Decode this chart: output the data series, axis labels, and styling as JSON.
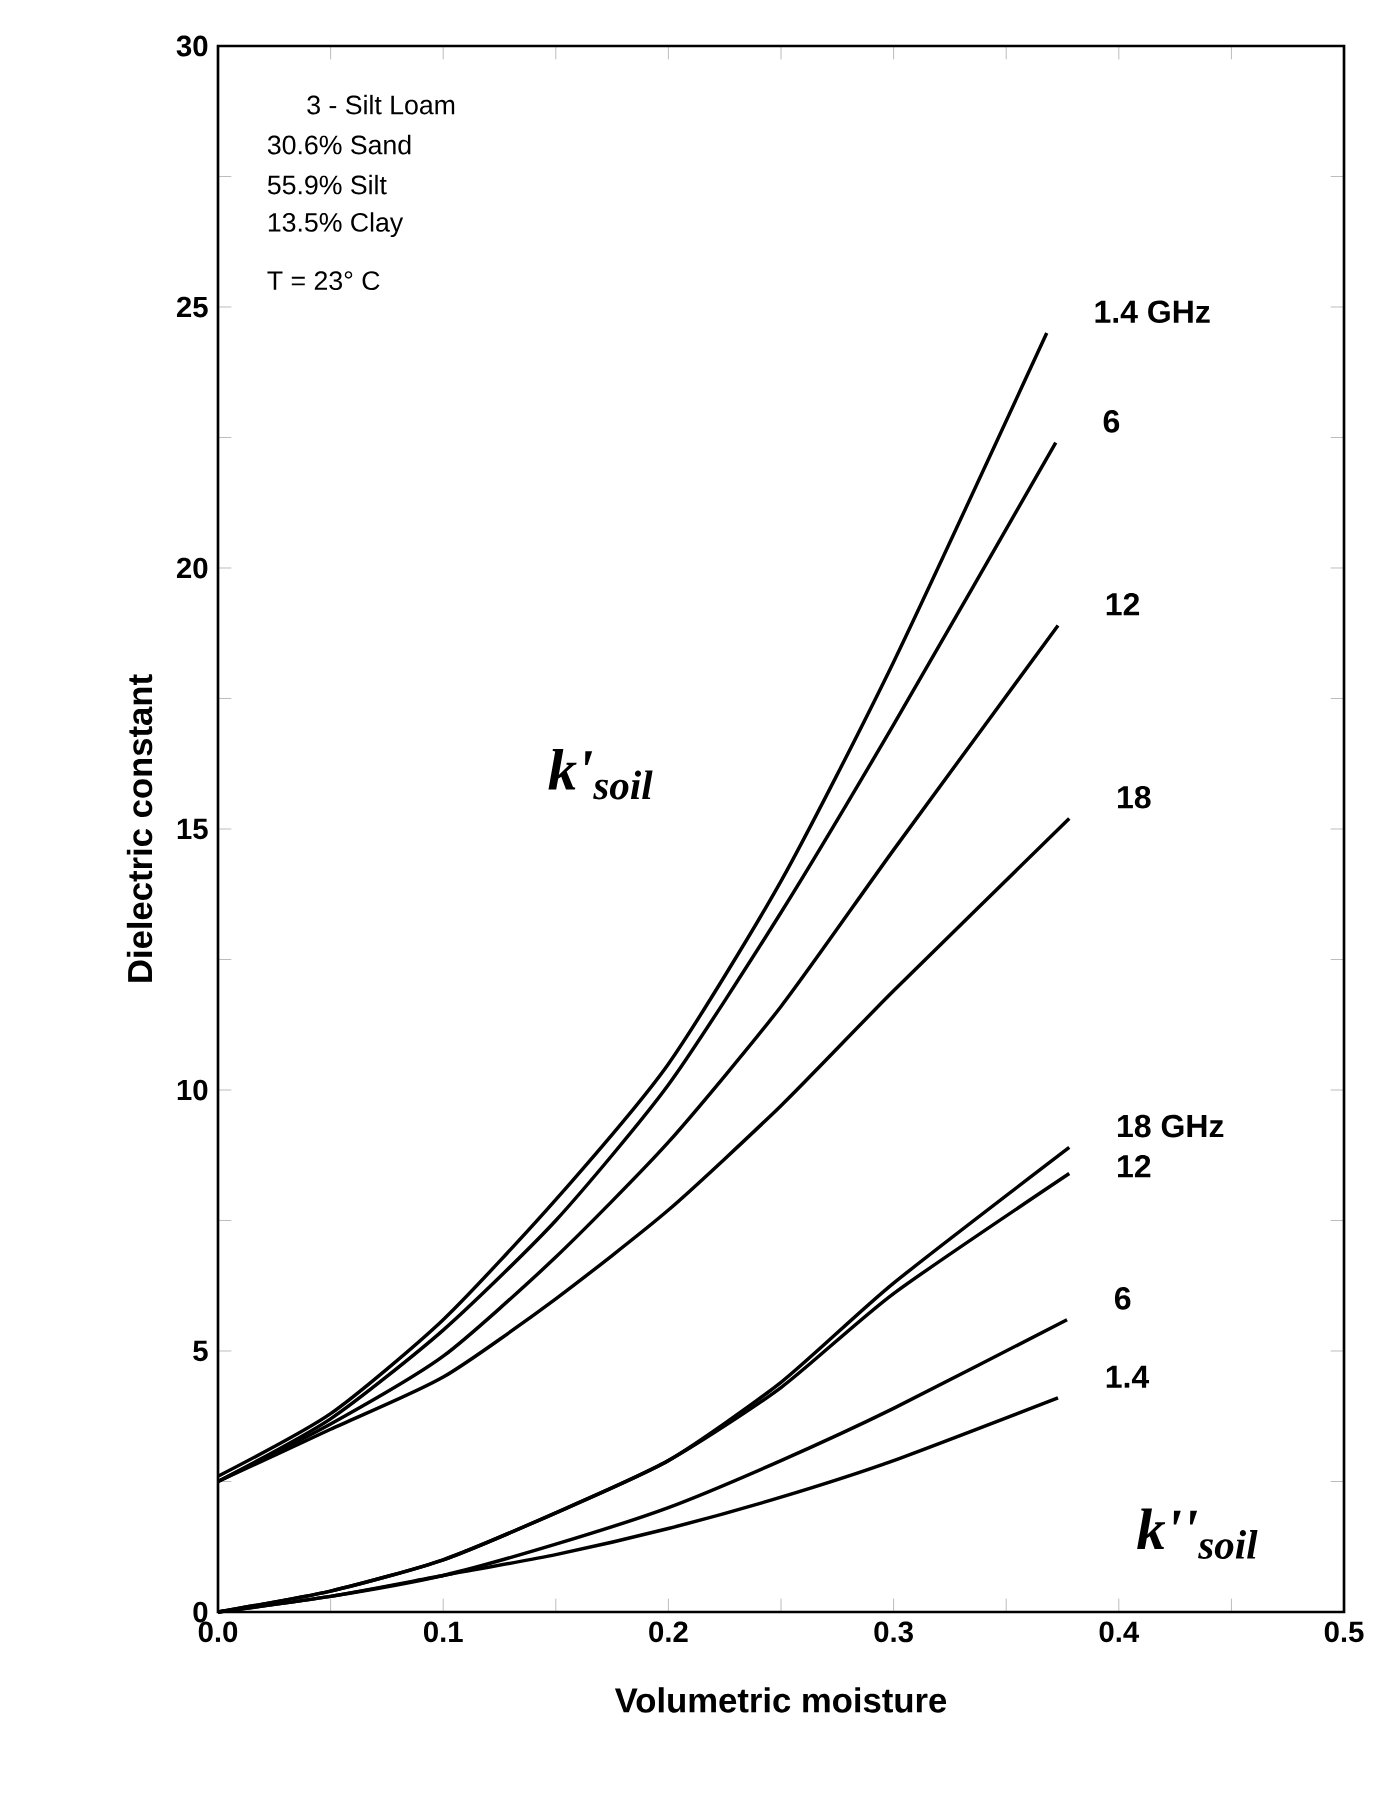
{
  "chart_data": {
    "type": "line",
    "xlabel": "Volumetric moisture",
    "ylabel": "Dielectric constant",
    "xlim": [
      0,
      0.5
    ],
    "ylim": [
      0,
      30
    ],
    "xticks": [
      {
        "value": 0,
        "label": "0.0"
      },
      {
        "value": 0.05,
        "label": null
      },
      {
        "value": 0.1,
        "label": "0.1"
      },
      {
        "value": 0.15,
        "label": null
      },
      {
        "value": 0.2,
        "label": "0.2"
      },
      {
        "value": 0.25,
        "label": null
      },
      {
        "value": 0.3,
        "label": "0.3"
      },
      {
        "value": 0.35,
        "label": null
      },
      {
        "value": 0.4,
        "label": "0.4"
      },
      {
        "value": 0.45,
        "label": null
      },
      {
        "value": 0.5,
        "label": "0.5"
      }
    ],
    "yticks": [
      0,
      {
        "value": 2.5,
        "label": null
      },
      5,
      {
        "value": 7.5,
        "label": null
      },
      10,
      {
        "value": 12.5,
        "label": null
      },
      15,
      {
        "value": 17.5,
        "label": null
      },
      20,
      {
        "value": 22.5,
        "label": null
      },
      25,
      {
        "value": 27.5,
        "label": null
      },
      30
    ],
    "grid": false,
    "marker": "none",
    "line_style": "solid",
    "series": [
      {
        "name": "1.4 GHz",
        "color": "#000000",
        "x": [
          0,
          0.05,
          0.1,
          0.15,
          0.2,
          0.25,
          0.3,
          0.368
        ],
        "values": [
          2.6,
          3.8,
          5.6,
          7.9,
          10.5,
          14.0,
          18.2,
          24.5
        ]
      },
      {
        "name": "6",
        "color": "#000000",
        "x": [
          0,
          0.05,
          0.1,
          0.15,
          0.2,
          0.25,
          0.3,
          0.372
        ],
        "values": [
          2.5,
          3.7,
          5.4,
          7.5,
          10.1,
          13.4,
          17.0,
          22.4
        ]
      },
      {
        "name": "12",
        "color": "#000000",
        "x": [
          0,
          0.05,
          0.1,
          0.15,
          0.2,
          0.25,
          0.3,
          0.373
        ],
        "values": [
          2.5,
          3.6,
          4.9,
          6.8,
          9.0,
          11.6,
          14.6,
          18.9
        ]
      },
      {
        "name": "18",
        "color": "#000000",
        "x": [
          0,
          0.05,
          0.1,
          0.15,
          0.2,
          0.25,
          0.3,
          0.378
        ],
        "values": [
          2.5,
          3.5,
          4.5,
          6.0,
          7.7,
          9.7,
          11.9,
          15.2
        ]
      },
      {
        "name": "18 GHz",
        "color": "#000000",
        "x": [
          0,
          0.05,
          0.1,
          0.15,
          0.2,
          0.25,
          0.3,
          0.378
        ],
        "values": [
          0,
          0.4,
          1.0,
          1.9,
          2.9,
          4.4,
          6.3,
          8.9
        ]
      },
      {
        "name": "12",
        "color": "#000000",
        "x": [
          0,
          0.05,
          0.1,
          0.15,
          0.2,
          0.25,
          0.3,
          0.378
        ],
        "values": [
          0,
          0.4,
          1.0,
          1.9,
          2.9,
          4.3,
          6.1,
          8.4
        ]
      },
      {
        "name": "6",
        "color": "#000000",
        "x": [
          0,
          0.05,
          0.1,
          0.15,
          0.2,
          0.25,
          0.3,
          0.377
        ],
        "values": [
          0,
          0.3,
          0.7,
          1.3,
          2.0,
          2.9,
          3.9,
          5.6
        ]
      },
      {
        "name": "1.4",
        "color": "#000000",
        "x": [
          0,
          0.05,
          0.1,
          0.15,
          0.2,
          0.25,
          0.3,
          0.373
        ],
        "values": [
          0,
          0.3,
          0.7,
          1.1,
          1.6,
          2.2,
          2.9,
          4.1
        ]
      }
    ],
    "annotations": [
      "3 - Silt Loam",
      "30.6%   Sand",
      "55.9%   Silt",
      "13.5%   Clay",
      "T = 23° C",
      "k'$_{soil}$",
      "k''$_{soil}$"
    ]
  }
}
